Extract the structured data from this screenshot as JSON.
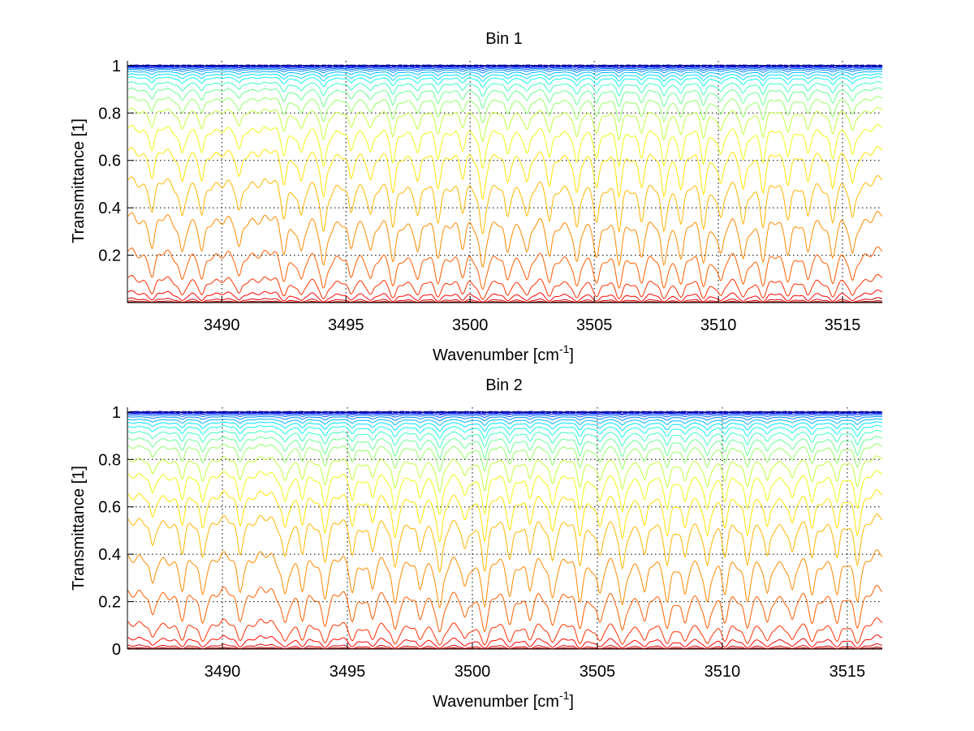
{
  "chart_data": [
    {
      "type": "line",
      "title": "Bin 1",
      "xlabel": "Wavenumber [cm",
      "xlabel_sup": "-1",
      "xlabel_end": "]",
      "ylabel": "Transmittance [1]",
      "xlim": [
        3486.2,
        3516.6
      ],
      "ylim": [
        0.0,
        1.02
      ],
      "xticks": [
        3490,
        3495,
        3500,
        3505,
        3510,
        3515
      ],
      "xtick_labels": [
        "3490",
        "3495",
        "3500",
        "3505",
        "3510",
        "3515"
      ],
      "yticks": [
        0.2,
        0.4,
        0.6,
        0.8,
        1.0
      ],
      "ytick_labels": [
        "0.2",
        "0.4",
        "0.6",
        "0.8",
        "1"
      ],
      "grid": true,
      "colormap": "jet",
      "series_baseline_levels": [
        0.003,
        0.01,
        0.025,
        0.06,
        0.13,
        0.25,
        0.4,
        0.55,
        0.67,
        0.76,
        0.83,
        0.875,
        0.91,
        0.935,
        0.955,
        0.967,
        0.977,
        0.985,
        0.99,
        0.994,
        0.997,
        0.999,
        1.0,
        1.0
      ],
      "absorption_line_centers": [
        3487.2,
        3488.4,
        3489.2,
        3490.7,
        3492.5,
        3493.2,
        3494.1,
        3495.2,
        3496.0,
        3496.9,
        3497.9,
        3498.7,
        3499.7,
        3500.5,
        3501.5,
        3502.3,
        3503.2,
        3504.3,
        3505.1,
        3506.0,
        3506.9,
        3507.8,
        3508.5,
        3509.4,
        3510.1,
        3511.0,
        3511.8,
        3512.8,
        3513.6,
        3514.6,
        3515.4
      ],
      "absorption_line_depths": [
        0.45,
        0.5,
        0.55,
        0.5,
        0.55,
        0.5,
        0.85,
        0.5,
        0.45,
        0.75,
        0.5,
        0.6,
        0.45,
        0.85,
        0.55,
        0.5,
        0.6,
        0.8,
        0.55,
        0.8,
        0.55,
        0.8,
        0.6,
        0.7,
        0.55,
        0.65,
        0.7,
        0.5,
        0.55,
        0.6,
        0.6
      ]
    },
    {
      "type": "line",
      "title": "Bin 2",
      "xlabel": "Wavenumber [cm",
      "xlabel_sup": "-1",
      "xlabel_end": "]",
      "ylabel": "Transmittance [1]",
      "xlim": [
        3486.2,
        3516.4
      ],
      "ylim": [
        0.0,
        1.02
      ],
      "xticks": [
        3490,
        3495,
        3500,
        3505,
        3510,
        3515
      ],
      "xtick_labels": [
        "3490",
        "3495",
        "3500",
        "3505",
        "3510",
        "3515"
      ],
      "yticks": [
        0,
        0.2,
        0.4,
        0.6,
        0.8,
        1.0
      ],
      "ytick_labels": [
        "0",
        "0.2",
        "0.4",
        "0.6",
        "0.8",
        "1"
      ],
      "grid": true,
      "colormap": "jet",
      "series_baseline_levels": [
        0.003,
        0.01,
        0.025,
        0.065,
        0.14,
        0.28,
        0.43,
        0.58,
        0.68,
        0.76,
        0.82,
        0.87,
        0.9,
        0.925,
        0.945,
        0.96,
        0.972,
        0.982,
        0.989,
        0.994,
        0.997,
        0.999,
        1.0,
        1.0
      ],
      "absorption_line_centers": [
        3487.2,
        3488.4,
        3489.2,
        3490.7,
        3492.5,
        3493.2,
        3494.1,
        3495.2,
        3496.0,
        3496.9,
        3497.9,
        3498.7,
        3499.7,
        3500.5,
        3501.5,
        3502.3,
        3503.2,
        3504.3,
        3505.1,
        3506.0,
        3506.9,
        3507.8,
        3508.5,
        3509.4,
        3510.1,
        3511.0,
        3511.8,
        3512.8,
        3513.6,
        3514.6,
        3515.4
      ],
      "absorption_line_depths": [
        0.45,
        0.5,
        0.55,
        0.5,
        0.55,
        0.5,
        0.6,
        0.5,
        0.45,
        0.75,
        0.5,
        0.85,
        0.45,
        0.8,
        0.55,
        0.5,
        0.6,
        0.7,
        0.55,
        0.8,
        0.55,
        0.65,
        0.6,
        0.7,
        0.55,
        0.65,
        0.6,
        0.5,
        0.55,
        0.6,
        0.65
      ]
    }
  ]
}
